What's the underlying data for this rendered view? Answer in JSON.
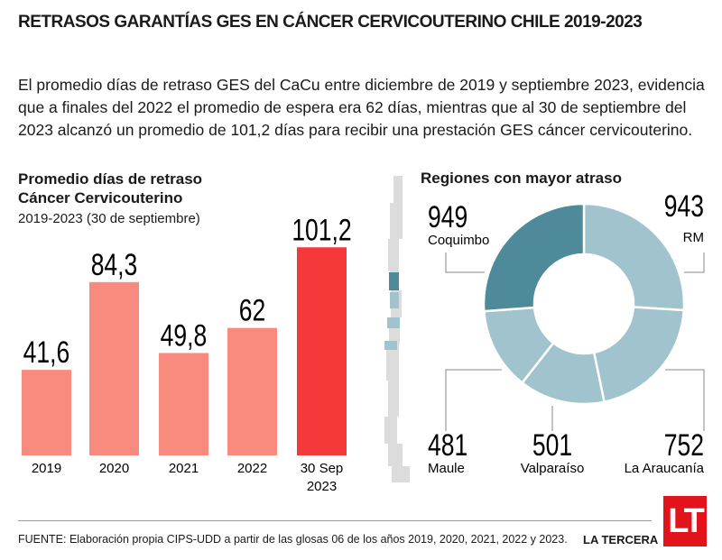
{
  "title": "RETRASOS GARANTÍAS GES EN CÁNCER CERVICOUTERINO CHILE 2019-2023",
  "intro": "El promedio días de retraso GES del CaCu entre diciembre de 2019 y septiembre 2023, evidencia que a finales del 2022 el promedio de espera era 62 días, mientras que al 30 de septiembre del 2023 alcanzó un promedio de 101,2 días para recibir una prestación GES cáncer cervicouterino.",
  "chart_data": [
    {
      "type": "bar",
      "title": "Promedio días de retraso Cáncer Cervicouterino",
      "subtitle": "2019-2023 (30 de septiembre)",
      "categories": [
        "2019",
        "2020",
        "2021",
        "2022",
        "30 Sep 2023"
      ],
      "values": [
        41.6,
        84.3,
        49.8,
        62,
        101.2
      ],
      "data_labels": [
        "41,6",
        "84,3",
        "49,8",
        "62",
        "101,2"
      ],
      "colors": [
        "#f98a7e",
        "#f98a7e",
        "#f98a7e",
        "#f98a7e",
        "#f5383a"
      ]
    },
    {
      "type": "pie",
      "subtitle": "Regiones con mayor atraso",
      "donut": true,
      "labels": [
        "RM",
        "La Araucanía",
        "Valparaíso",
        "Maule",
        "Coquimbo"
      ],
      "values": [
        943,
        752,
        501,
        481,
        949
      ],
      "colors": [
        "#a0c3cd",
        "#a0c3cd",
        "#a0c3cd",
        "#a0c3cd",
        "#4f8a9a"
      ]
    }
  ],
  "footer": {
    "source": "FUENTE: Elaboración propia CIPS-UDD a partir de las glosas 06 de los años 2019, 2020, 2021, 2022 y 2023.",
    "brand": "LA TERCERA",
    "logo": "LT"
  }
}
